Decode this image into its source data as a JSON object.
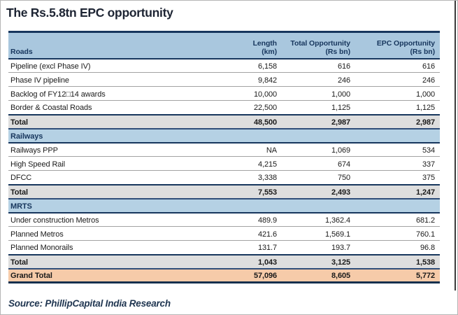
{
  "title": "The Rs.5.8tn EPC opportunity",
  "source": "Source: PhillipCapital India Research",
  "colors": {
    "header_bg": "#a9c7de",
    "section_bg": "#b5d1e4",
    "total_bg": "#dedede",
    "grand_total_bg": "#f6cba9",
    "border_navy": "#17365d",
    "title_color": "#1d2433",
    "source_color": "#1f3550"
  },
  "table": {
    "header": {
      "col1": "Roads",
      "col2": {
        "line1": "Length",
        "line2": "(km)"
      },
      "col3": {
        "line1": "Total Opportunity",
        "line2": "(Rs bn)"
      },
      "col4": {
        "line1": "EPC Opportunity",
        "line2": "(Rs bn)"
      }
    },
    "rows": [
      {
        "type": "data",
        "label": "Pipeline (excl Phase IV)",
        "length": "6,158",
        "total": "616",
        "epc": "616"
      },
      {
        "type": "data",
        "label": "Phase IV pipeline",
        "length": "9,842",
        "total": "246",
        "epc": "246"
      },
      {
        "type": "data",
        "label": "Backlog of FY12□14 awards",
        "length": "10,000",
        "total": "1,000",
        "epc": "1,000"
      },
      {
        "type": "data",
        "label": "Border & Coastal Roads",
        "length": "22,500",
        "total": "1,125",
        "epc": "1,125"
      },
      {
        "type": "total",
        "label": "Total",
        "length": "48,500",
        "total": "2,987",
        "epc": "2,987"
      },
      {
        "type": "section",
        "label": "Railways"
      },
      {
        "type": "data",
        "label": "Railways PPP",
        "length": "NA",
        "total": "1,069",
        "epc": "534"
      },
      {
        "type": "data",
        "label": "High Speed Rail",
        "length": "4,215",
        "total": "674",
        "epc": "337"
      },
      {
        "type": "data",
        "label": "DFCC",
        "length": "3,338",
        "total": "750",
        "epc": "375"
      },
      {
        "type": "total",
        "label": "Total",
        "length": "7,553",
        "total": "2,493",
        "epc": "1,247"
      },
      {
        "type": "section",
        "label": "MRTS"
      },
      {
        "type": "data",
        "label": "Under construction Metros",
        "length": "489.9",
        "total": "1,362.4",
        "epc": "681.2"
      },
      {
        "type": "data",
        "label": "Planned Metros",
        "length": "421.6",
        "total": "1,569.1",
        "epc": "760.1"
      },
      {
        "type": "data",
        "label": "Planned Monorails",
        "length": "131.7",
        "total": "193.7",
        "epc": "96.8"
      },
      {
        "type": "total",
        "label": "Total",
        "length": "1,043",
        "total": "3,125",
        "epc": "1,538"
      },
      {
        "type": "grand",
        "label": "Grand Total",
        "length": "57,096",
        "total": "8,605",
        "epc": "5,772"
      }
    ]
  }
}
